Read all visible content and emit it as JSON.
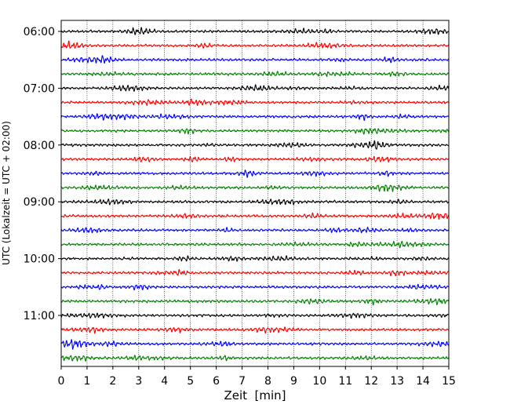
{
  "chart_data": {
    "type": "line",
    "title": "",
    "xlabel": "Zeit  [min]",
    "ylabel": "UTC (Lokalzeit = UTC + 02:00)",
    "xlim": [
      0,
      15
    ],
    "x_ticks": [
      "0",
      "1",
      "2",
      "3",
      "4",
      "5",
      "6",
      "7",
      "8",
      "9",
      "10",
      "11",
      "12",
      "13",
      "14",
      "15"
    ],
    "y_ticks": [
      "06:00",
      "07:00",
      "08:00",
      "09:00",
      "10:00",
      "11:00"
    ],
    "grid": "vertical dotted at each minute",
    "colors": [
      "#000000",
      "#ff0000",
      "#0000ff",
      "#008000"
    ],
    "traces": [
      {
        "start": "06:00",
        "color": "#000000"
      },
      {
        "start": "06:15",
        "color": "#ff0000"
      },
      {
        "start": "06:30",
        "color": "#0000ff"
      },
      {
        "start": "06:45",
        "color": "#008000"
      },
      {
        "start": "07:00",
        "color": "#000000"
      },
      {
        "start": "07:15",
        "color": "#ff0000"
      },
      {
        "start": "07:30",
        "color": "#0000ff"
      },
      {
        "start": "07:45",
        "color": "#008000"
      },
      {
        "start": "08:00",
        "color": "#000000"
      },
      {
        "start": "08:15",
        "color": "#ff0000"
      },
      {
        "start": "08:30",
        "color": "#0000ff"
      },
      {
        "start": "08:45",
        "color": "#008000"
      },
      {
        "start": "09:00",
        "color": "#000000"
      },
      {
        "start": "09:15",
        "color": "#ff0000"
      },
      {
        "start": "09:30",
        "color": "#0000ff"
      },
      {
        "start": "09:45",
        "color": "#008000"
      },
      {
        "start": "10:00",
        "color": "#000000"
      },
      {
        "start": "10:15",
        "color": "#ff0000"
      },
      {
        "start": "10:30",
        "color": "#0000ff"
      },
      {
        "start": "10:45",
        "color": "#008000"
      },
      {
        "start": "11:00",
        "color": "#000000"
      },
      {
        "start": "11:15",
        "color": "#ff0000"
      },
      {
        "start": "11:30",
        "color": "#0000ff"
      },
      {
        "start": "11:45",
        "color": "#008000"
      }
    ]
  }
}
